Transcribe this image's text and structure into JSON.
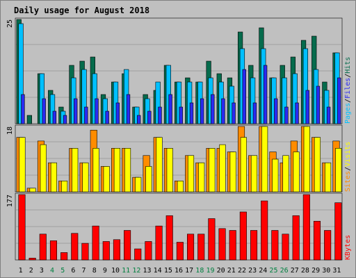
{
  "title": "Daily usage for August 2018",
  "colors": {
    "hits": "#066b4c",
    "files": "#00c0ff",
    "pages": "#2a2af0",
    "visits": "#ff8c00",
    "sites": "#ffff00",
    "kbytes": "#ff0000",
    "title": "#0000c0",
    "weekend": "#008040",
    "weekday": "#000000",
    "panel": "#c0c0c0"
  },
  "chart_data": [
    {
      "type": "bar",
      "panel": "top",
      "ymax_label": "25",
      "side_label": [
        "Pages",
        "Files",
        "Hits"
      ],
      "categories": [
        "1",
        "2",
        "3",
        "4",
        "5",
        "6",
        "7",
        "8",
        "9",
        "10",
        "11",
        "12",
        "13",
        "14",
        "15",
        "16",
        "17",
        "18",
        "19",
        "20",
        "21",
        "22",
        "23",
        "24",
        "25",
        "26",
        "27",
        "28",
        "29",
        "30",
        "31"
      ],
      "series": [
        {
          "name": "Hits",
          "values": [
            25,
            2,
            12,
            8,
            4,
            14,
            15,
            16,
            7,
            10,
            12,
            4,
            7,
            8,
            14,
            10,
            11,
            10,
            15,
            12,
            11,
            22,
            14,
            23,
            11,
            14,
            16,
            20,
            21,
            10,
            17
          ]
        },
        {
          "name": "Files",
          "values": [
            24,
            0,
            12,
            7,
            3,
            11,
            13,
            12,
            6,
            10,
            13,
            4,
            6,
            10,
            14,
            10,
            10,
            10,
            11,
            10,
            9,
            18,
            11,
            18,
            11,
            11,
            12,
            18,
            13,
            8,
            17
          ]
        },
        {
          "name": "Pages",
          "values": [
            7,
            0,
            6,
            3,
            2,
            6,
            4,
            6,
            3,
            5,
            7,
            2,
            3,
            4,
            7,
            4,
            5,
            6,
            7,
            6,
            5,
            13,
            5,
            14,
            6,
            4,
            5,
            8,
            9,
            4,
            11
          ]
        }
      ]
    },
    {
      "type": "bar",
      "panel": "middle",
      "ymax_label": "18",
      "side_label": [
        "Sites",
        "Visits"
      ],
      "categories": [
        "1",
        "2",
        "3",
        "4",
        "5",
        "6",
        "7",
        "8",
        "9",
        "10",
        "11",
        "12",
        "13",
        "14",
        "15",
        "16",
        "17",
        "18",
        "19",
        "20",
        "21",
        "22",
        "23",
        "24",
        "25",
        "26",
        "27",
        "28",
        "29",
        "30",
        "31"
      ],
      "series": [
        {
          "name": "Visits",
          "values": [
            15,
            1,
            14,
            8,
            3,
            12,
            8,
            17,
            7,
            12,
            12,
            4,
            10,
            15,
            12,
            3,
            10,
            8,
            12,
            12,
            11,
            18,
            10,
            18,
            11,
            8,
            14,
            18,
            15,
            8,
            14
          ]
        },
        {
          "name": "Sites",
          "values": [
            15,
            1,
            13,
            8,
            3,
            12,
            8,
            12,
            7,
            12,
            12,
            4,
            7,
            15,
            12,
            3,
            10,
            8,
            12,
            13,
            11,
            15,
            10,
            18,
            9,
            10,
            11,
            18,
            15,
            8,
            12
          ]
        }
      ]
    },
    {
      "type": "bar",
      "panel": "bottom",
      "ymax_label": "177",
      "side_label": [
        "KBytes"
      ],
      "categories": [
        "1",
        "2",
        "3",
        "4",
        "5",
        "6",
        "7",
        "8",
        "9",
        "10",
        "11",
        "12",
        "13",
        "14",
        "15",
        "16",
        "17",
        "18",
        "19",
        "20",
        "21",
        "22",
        "23",
        "24",
        "25",
        "26",
        "27",
        "28",
        "29",
        "30",
        "31"
      ],
      "series": [
        {
          "name": "KBytes",
          "values": [
            177,
            5,
            70,
            52,
            20,
            72,
            45,
            92,
            50,
            55,
            80,
            30,
            50,
            92,
            120,
            48,
            70,
            70,
            112,
            85,
            80,
            130,
            80,
            160,
            80,
            70,
            120,
            177,
            105,
            80,
            155
          ]
        }
      ]
    }
  ],
  "weekend_days": [
    "4",
    "5",
    "11",
    "12",
    "18",
    "19",
    "25",
    "26"
  ]
}
